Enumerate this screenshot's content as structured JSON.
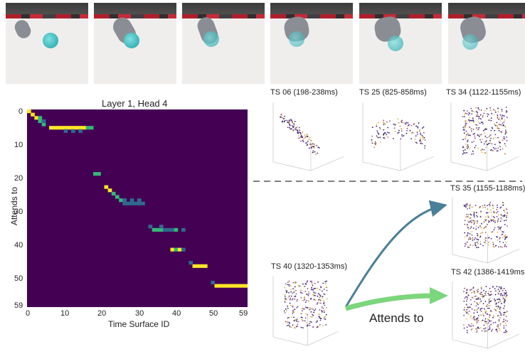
{
  "heatmap": {
    "title": "Layer 1, Head 4",
    "xlabel": "Time Surface ID",
    "ylabel": "Attends to",
    "xticks": [
      "0",
      "10",
      "20",
      "30",
      "40",
      "50",
      "59"
    ],
    "yticks": [
      "0",
      "10",
      "20",
      "30",
      "40",
      "50",
      "59"
    ]
  },
  "timesurfaces": [
    {
      "label": "TS 06 (198-238ms)"
    },
    {
      "label": "TS 25 (825-858ms)"
    },
    {
      "label": "TS 34 (1122-1155ms)"
    },
    {
      "label": "TS 35 (1155-1188ms)"
    },
    {
      "label": "TS 40 (1320-1353ms)"
    },
    {
      "label": "TS 42 (1386-1419ms"
    }
  ],
  "arrow_label": "Attends to",
  "colors": {
    "heat_bg": "#440154",
    "heat_high": "#fde725",
    "heat_mid": "#35b779",
    "heat_low": "#31688e",
    "arrow_blue": "#4a7f9a",
    "arrow_green": "#7cd67c"
  }
}
